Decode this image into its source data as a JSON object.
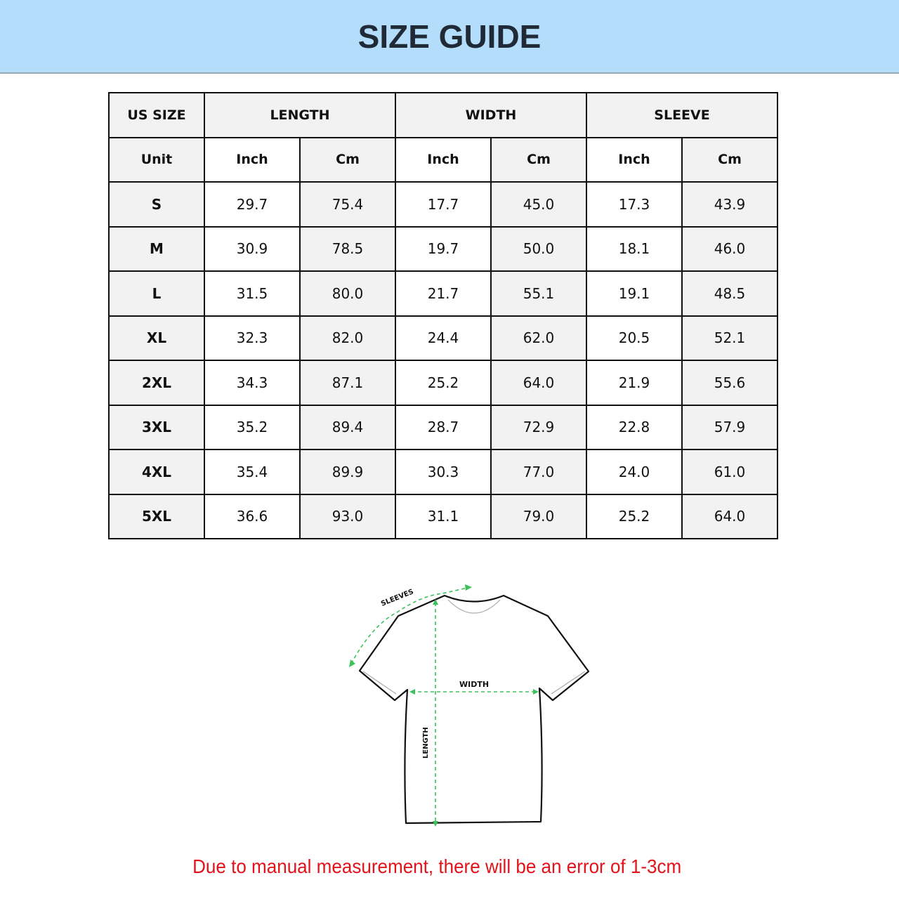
{
  "title": "SIZE GUIDE",
  "table": {
    "group_headers": [
      "US SIZE",
      "LENGTH",
      "WIDTH",
      "SLEEVE"
    ],
    "unit_row": [
      "Unit",
      "Inch",
      "Cm",
      "Inch",
      "Cm",
      "Inch",
      "Cm"
    ],
    "rows": [
      [
        "S",
        "29.7",
        "75.4",
        "17.7",
        "45.0",
        "17.3",
        "43.9"
      ],
      [
        "M",
        "30.9",
        "78.5",
        "19.7",
        "50.0",
        "18.1",
        "46.0"
      ],
      [
        "L",
        "31.5",
        "80.0",
        "21.7",
        "55.1",
        "19.1",
        "48.5"
      ],
      [
        "XL",
        "32.3",
        "82.0",
        "24.4",
        "62.0",
        "20.5",
        "52.1"
      ],
      [
        "2XL",
        "34.3",
        "87.1",
        "25.2",
        "64.0",
        "21.9",
        "55.6"
      ],
      [
        "3XL",
        "35.2",
        "89.4",
        "28.7",
        "72.9",
        "22.8",
        "57.9"
      ],
      [
        "4XL",
        "35.4",
        "89.9",
        "30.3",
        "77.0",
        "24.0",
        "61.0"
      ],
      [
        "5XL",
        "36.6",
        "93.0",
        "31.1",
        "79.0",
        "25.2",
        "64.0"
      ]
    ]
  },
  "diagram": {
    "labels": {
      "sleeves": "SLEEVES",
      "width": "WIDTH",
      "length": "LENGTH"
    },
    "measure_color": "#3cc25a"
  },
  "note": "Due to manual measurement, there will be an error of 1-3cm",
  "colors": {
    "banner": "#b3ddfb",
    "note": "#e3131b"
  }
}
